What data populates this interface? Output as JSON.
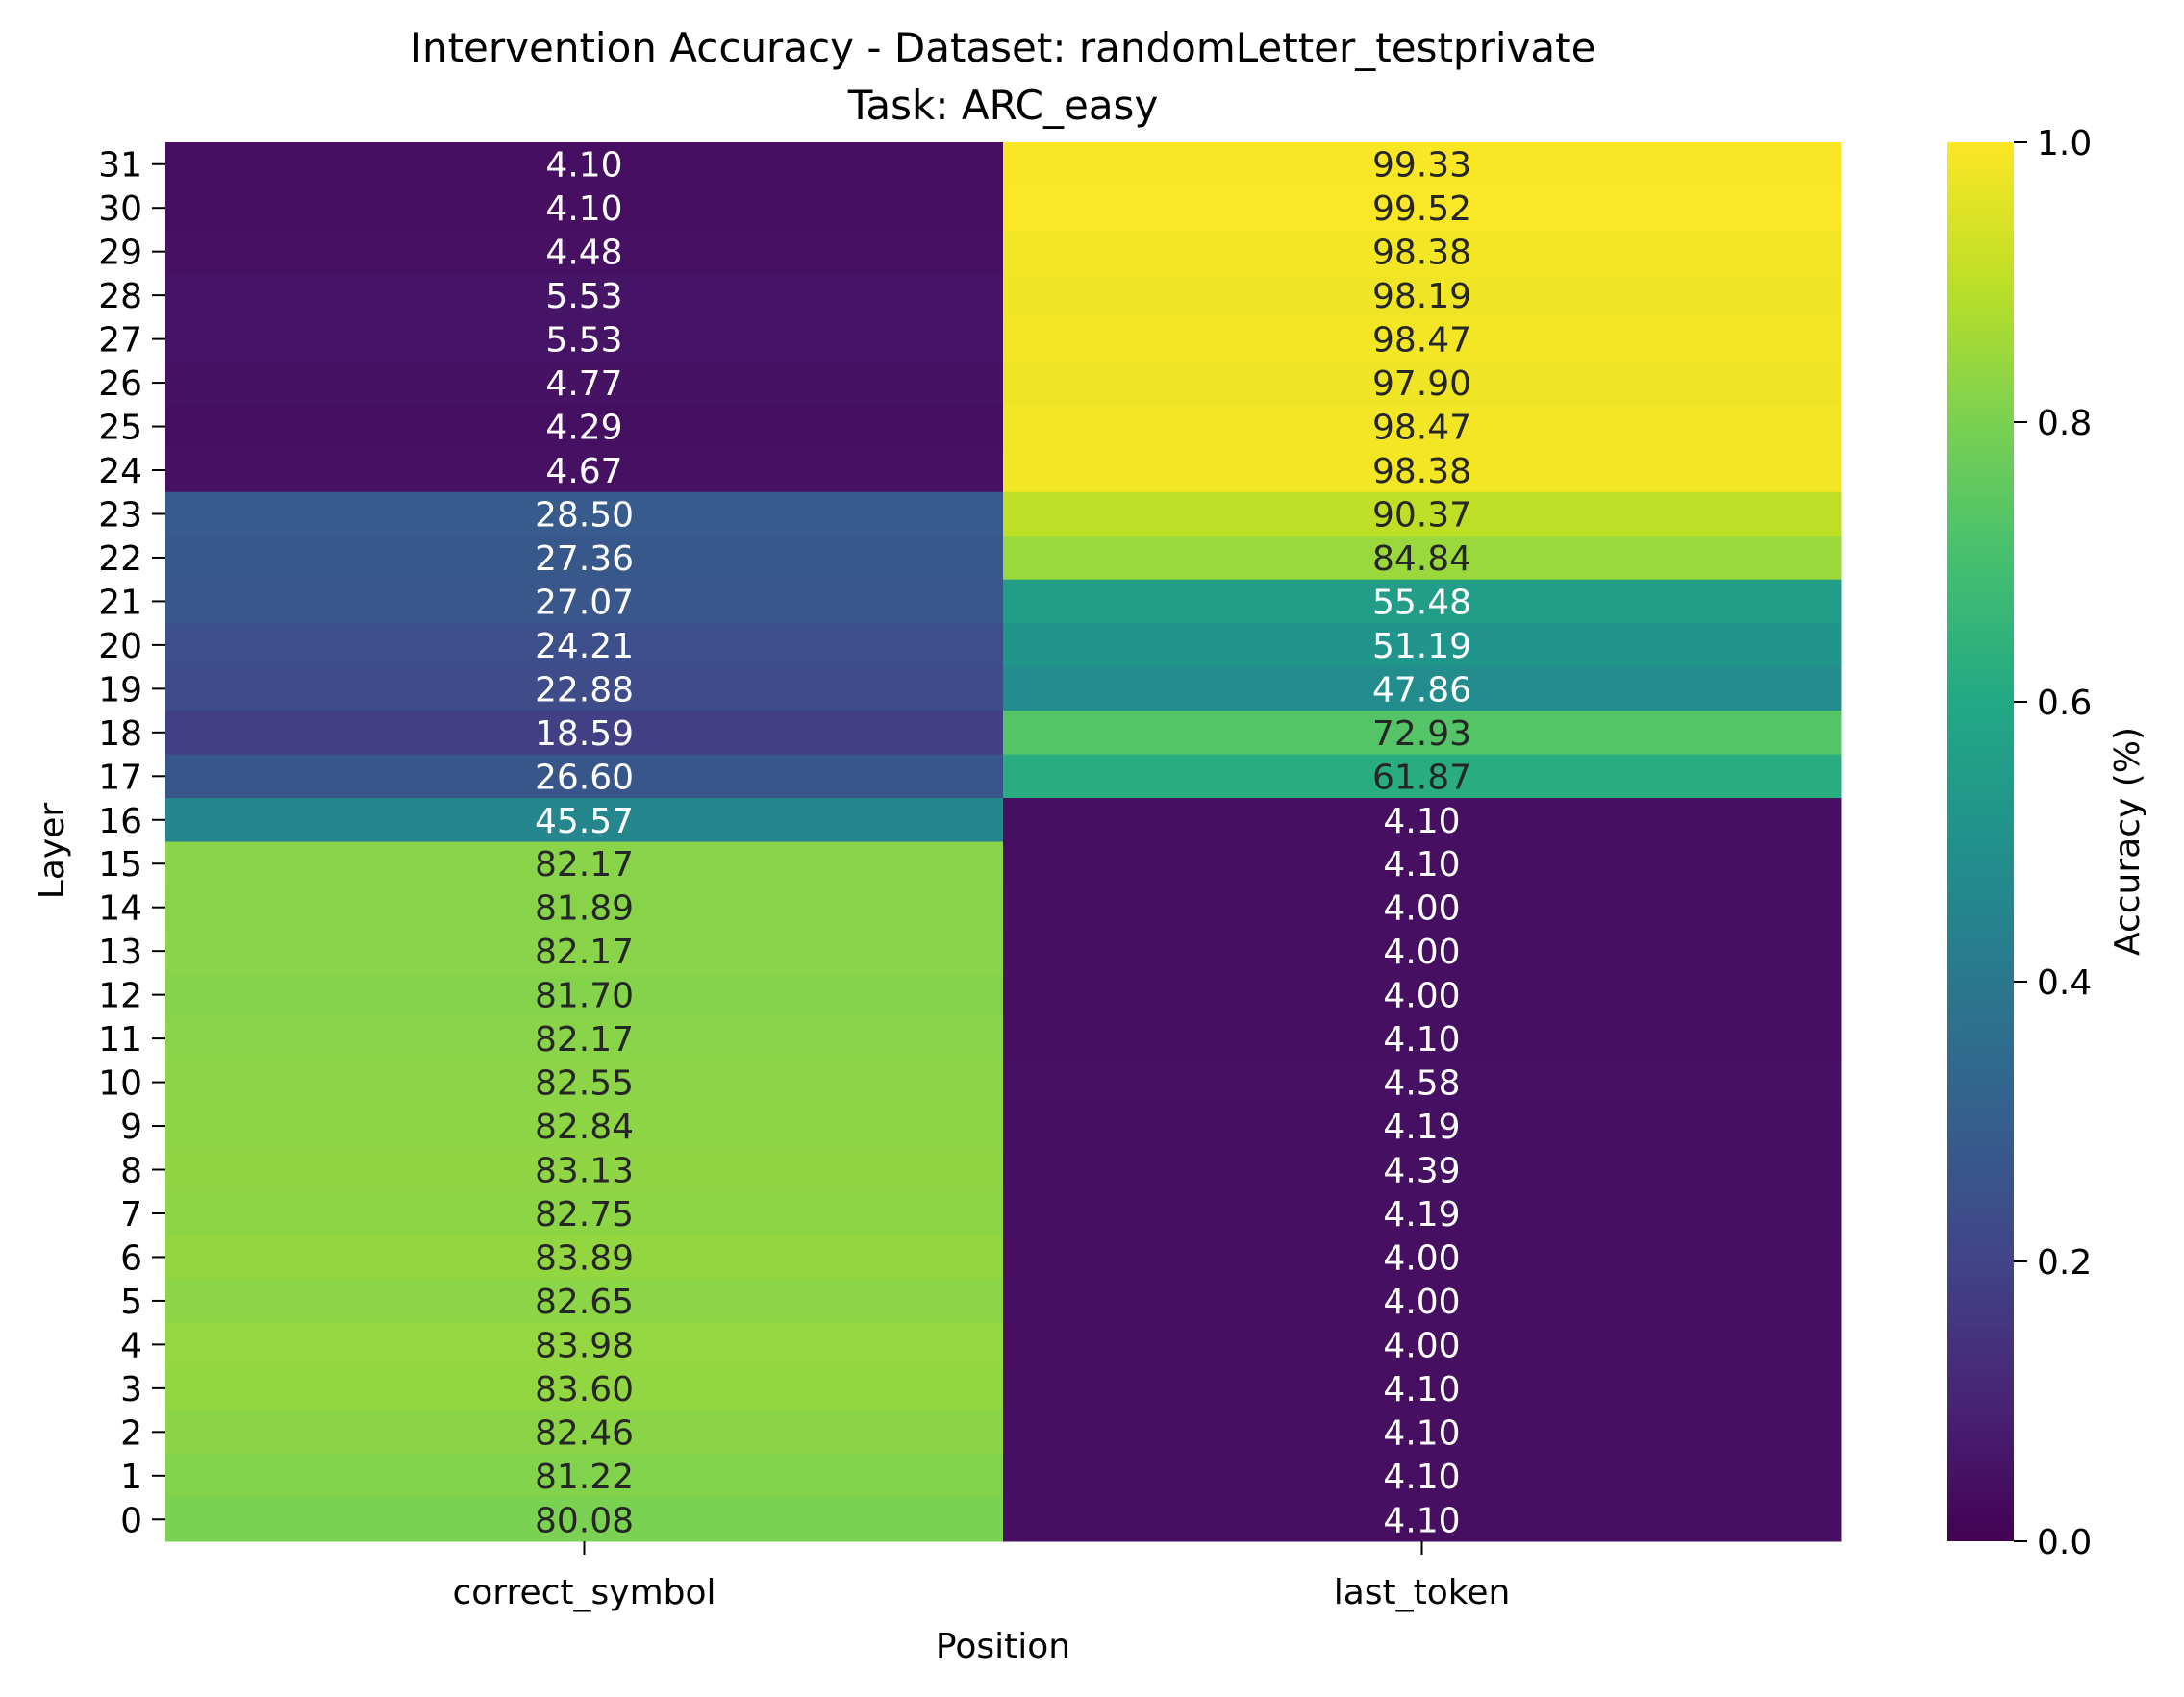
{
  "chart_data": {
    "type": "heatmap",
    "title_line1": "Intervention Accuracy - Dataset: randomLetter_testprivate",
    "title_line2": "Task: ARC_easy",
    "xlabel": "Position",
    "ylabel": "Layer",
    "colorbar_label": "Accuracy (%)",
    "colormap": "viridis",
    "value_range": [
      0,
      1
    ],
    "columns": [
      "correct_symbol",
      "last_token"
    ],
    "rows": [
      "31",
      "30",
      "29",
      "28",
      "27",
      "26",
      "25",
      "24",
      "23",
      "22",
      "21",
      "20",
      "19",
      "18",
      "17",
      "16",
      "15",
      "14",
      "13",
      "12",
      "11",
      "10",
      "9",
      "8",
      "7",
      "6",
      "5",
      "4",
      "3",
      "2",
      "1",
      "0"
    ],
    "values": [
      [
        4.1,
        99.33
      ],
      [
        4.1,
        99.52
      ],
      [
        4.48,
        98.38
      ],
      [
        5.53,
        98.19
      ],
      [
        5.53,
        98.47
      ],
      [
        4.77,
        97.9
      ],
      [
        4.29,
        98.47
      ],
      [
        4.67,
        98.38
      ],
      [
        28.5,
        90.37
      ],
      [
        27.36,
        84.84
      ],
      [
        27.07,
        55.48
      ],
      [
        24.21,
        51.19
      ],
      [
        22.88,
        47.86
      ],
      [
        18.59,
        72.93
      ],
      [
        26.6,
        61.87
      ],
      [
        45.57,
        4.1
      ],
      [
        82.17,
        4.1
      ],
      [
        81.89,
        4.0
      ],
      [
        82.17,
        4.0
      ],
      [
        81.7,
        4.0
      ],
      [
        82.17,
        4.1
      ],
      [
        82.55,
        4.58
      ],
      [
        82.84,
        4.19
      ],
      [
        83.13,
        4.39
      ],
      [
        82.75,
        4.19
      ],
      [
        83.89,
        4.0
      ],
      [
        82.65,
        4.0
      ],
      [
        83.98,
        4.0
      ],
      [
        83.6,
        4.1
      ],
      [
        82.46,
        4.1
      ],
      [
        81.22,
        4.1
      ],
      [
        80.08,
        4.1
      ]
    ],
    "colorbar_ticks": [
      "0.0",
      "0.2",
      "0.4",
      "0.6",
      "0.8",
      "1.0"
    ]
  }
}
